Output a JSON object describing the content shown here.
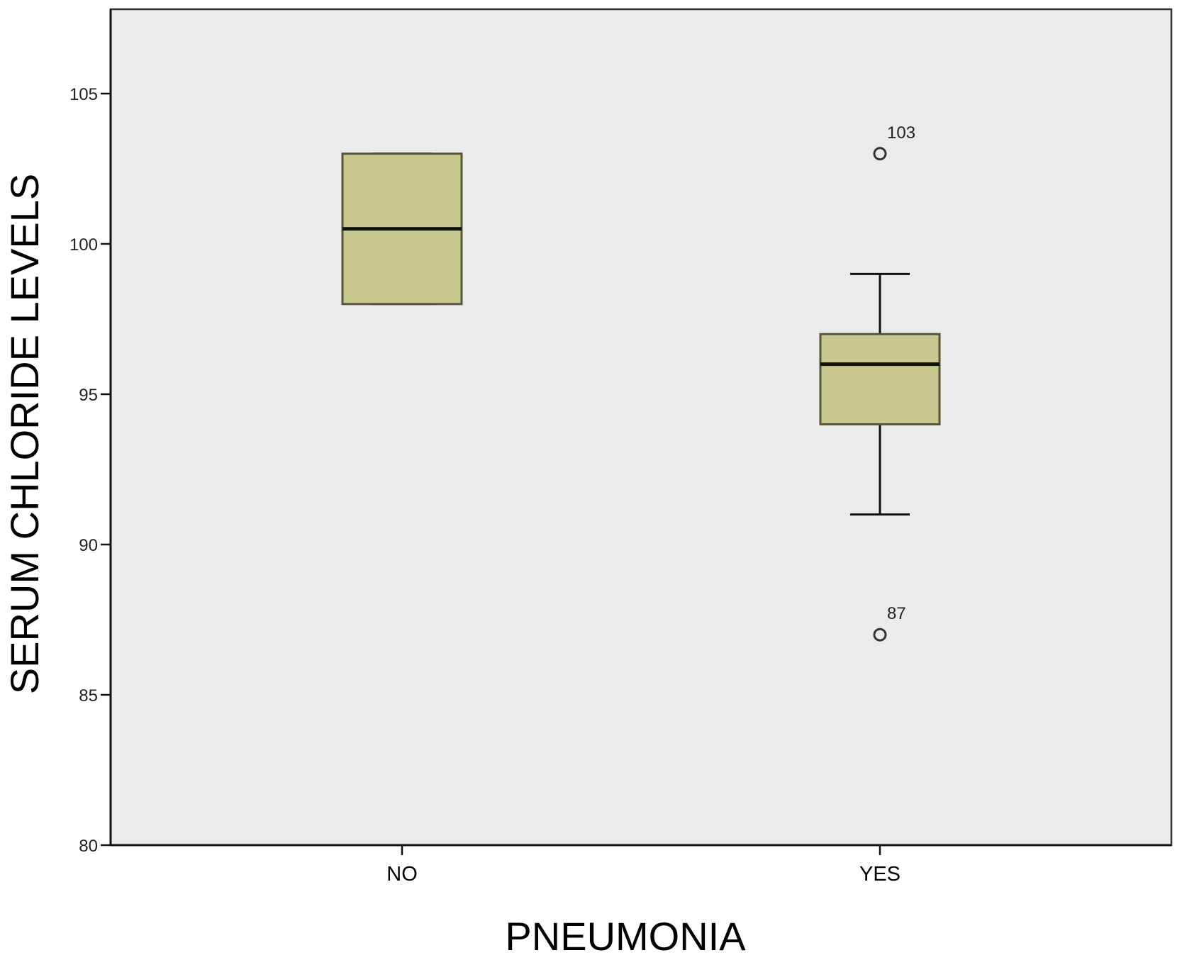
{
  "chart_data": {
    "type": "boxplot",
    "title": "",
    "xlabel": "PNEUMONIA",
    "ylabel": "SERUM CHLORIDE LEVELS",
    "ylim": [
      80,
      107.8
    ],
    "yticks": [
      80,
      85,
      90,
      95,
      100,
      105
    ],
    "categories": [
      "NO",
      "YES"
    ],
    "grid": false,
    "legend": null,
    "series": [
      {
        "name": "NO",
        "min": 98,
        "q1": 98,
        "median": 100.5,
        "q3": 103,
        "max": 103,
        "outliers": []
      },
      {
        "name": "YES",
        "min": 91,
        "q1": 94,
        "median": 96,
        "q3": 97,
        "max": 99,
        "outliers": [
          {
            "value": 103,
            "label": "103"
          },
          {
            "value": 87,
            "label": "87"
          }
        ]
      }
    ],
    "colors": {
      "plot_background": "#ebebeb",
      "box_fill": "#c9c98f",
      "box_stroke": "#55553a",
      "line": "#111111"
    }
  }
}
